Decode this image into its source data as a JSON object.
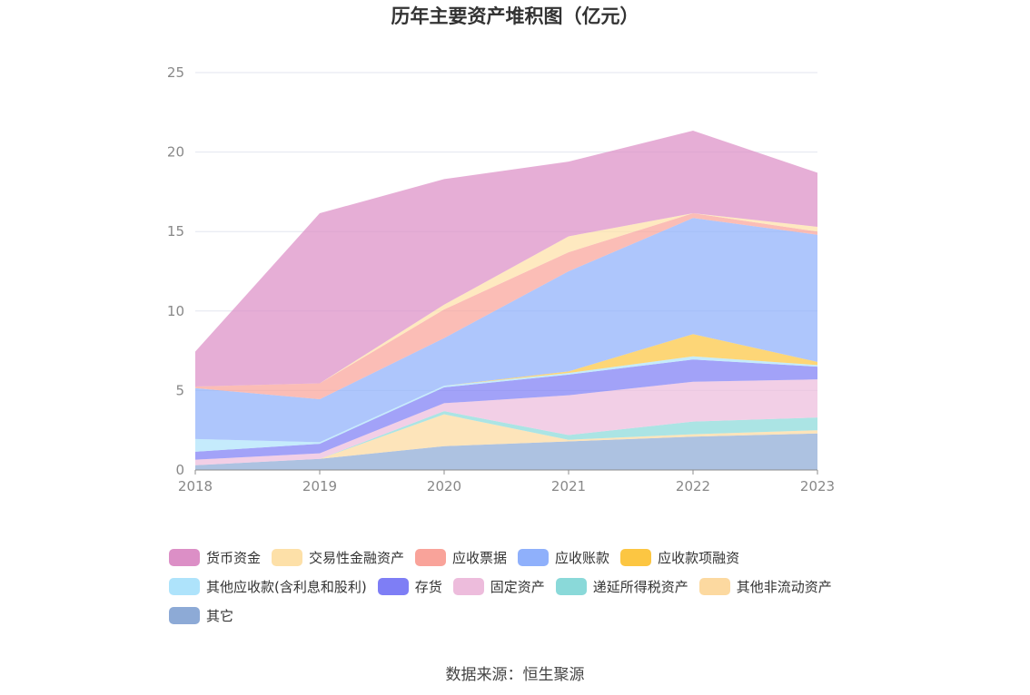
{
  "chart_data": {
    "type": "area",
    "stacked": true,
    "title": "历年主要资产堆积图（亿元）",
    "source": "数据来源：恒生聚源",
    "x": [
      "2018",
      "2019",
      "2020",
      "2021",
      "2022",
      "2023"
    ],
    "ylim": [
      0,
      25
    ],
    "yticks": [
      "0",
      "5",
      "10",
      "15",
      "20",
      "25"
    ],
    "grid": true,
    "legend_position": "bottom",
    "series": [
      {
        "name": "其它",
        "color": "#8daad6",
        "values": [
          0.3,
          0.7,
          1.5,
          1.8,
          2.1,
          2.3
        ]
      },
      {
        "name": "其他非流动资产",
        "color": "#fcd9a0",
        "values": [
          0.0,
          0.0,
          2.0,
          0.1,
          0.15,
          0.2
        ]
      },
      {
        "name": "递延所得税资产",
        "color": "#8ad9d9",
        "values": [
          0.0,
          0.0,
          0.2,
          0.3,
          0.8,
          0.8
        ]
      },
      {
        "name": "固定资产",
        "color": "#edbcdc",
        "values": [
          0.35,
          0.35,
          0.5,
          2.5,
          2.5,
          2.4
        ]
      },
      {
        "name": "存货",
        "color": "#7e7ef5",
        "values": [
          0.5,
          0.6,
          1.0,
          1.3,
          1.4,
          0.8
        ]
      },
      {
        "name": "其他应收款(含利息和股利)",
        "color": "#aee3fb",
        "values": [
          0.8,
          0.1,
          0.1,
          0.1,
          0.2,
          0.1
        ]
      },
      {
        "name": "应收款项融资",
        "color": "#fcc642",
        "values": [
          0.0,
          0.0,
          0.0,
          0.1,
          1.4,
          0.2
        ]
      },
      {
        "name": "应收账款",
        "color": "#8fb0fb",
        "values": [
          3.2,
          2.7,
          3.0,
          6.3,
          7.3,
          8.0
        ]
      },
      {
        "name": "应收票据",
        "color": "#f9a39a",
        "values": [
          0.1,
          1.0,
          1.8,
          1.2,
          0.3,
          0.2
        ]
      },
      {
        "name": "交易性金融资产",
        "color": "#fde0a8",
        "values": [
          0.0,
          0.0,
          0.3,
          1.0,
          0.0,
          0.3
        ]
      },
      {
        "name": "货币资金",
        "color": "#dc8fc6",
        "values": [
          2.2,
          10.7,
          7.9,
          4.7,
          5.2,
          3.4
        ]
      }
    ]
  },
  "legend": {
    "rows": [
      [
        {
          "label": "货币资金",
          "color": "#dc8fc6"
        },
        {
          "label": "交易性金融资产",
          "color": "#fde0a8"
        },
        {
          "label": "应收票据",
          "color": "#f9a39a"
        },
        {
          "label": "应收账款",
          "color": "#8fb0fb"
        },
        {
          "label": "应收款项融资",
          "color": "#fcc642"
        }
      ],
      [
        {
          "label": "其他应收款(含利息和股利)",
          "color": "#aee3fb"
        },
        {
          "label": "存货",
          "color": "#7e7ef5"
        },
        {
          "label": "固定资产",
          "color": "#edbcdc"
        },
        {
          "label": "递延所得税资产",
          "color": "#8ad9d9"
        },
        {
          "label": "其他非流动资产",
          "color": "#fcd9a0"
        }
      ],
      [
        {
          "label": "其它",
          "color": "#8daad6"
        }
      ]
    ]
  }
}
